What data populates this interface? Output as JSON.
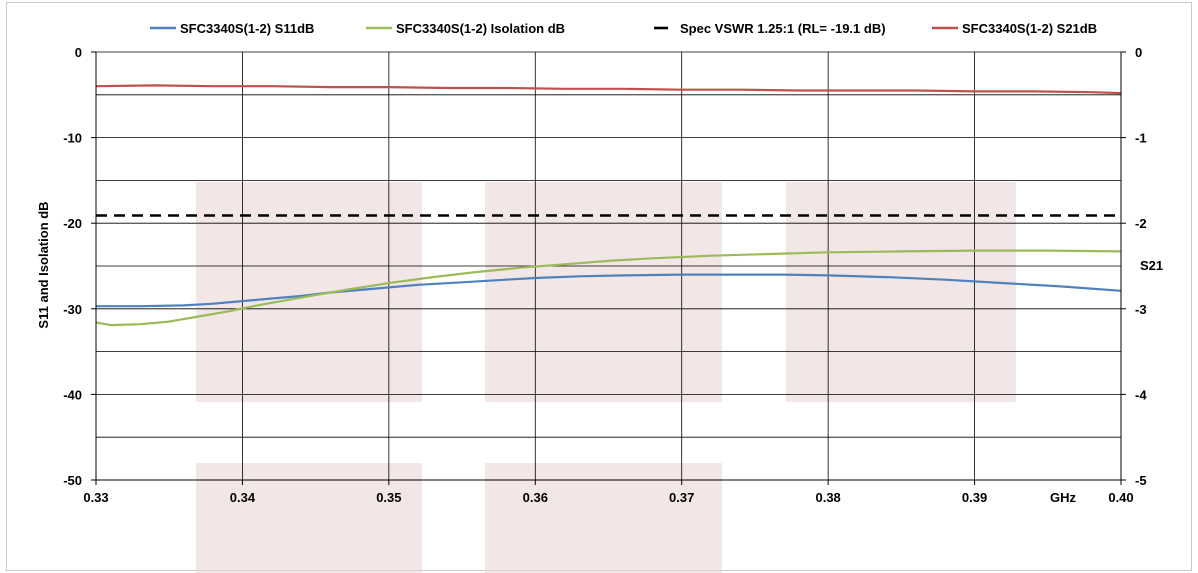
{
  "chart_data": {
    "type": "line",
    "title": "",
    "xlabel": "GHz",
    "ylabel": "S11 and Isolation dB",
    "y2label": "S21",
    "xlim": [
      0.33,
      0.4
    ],
    "ylim": [
      -50,
      0
    ],
    "y2lim": [
      -5,
      0
    ],
    "x_ticks": [
      "0.33",
      "0.34",
      "0.35",
      "0.36",
      "0.37",
      "0.38",
      "0.39",
      "0.40"
    ],
    "y_ticks": [
      "0",
      "-10",
      "-20",
      "-30",
      "-40",
      "-50"
    ],
    "y2_ticks": [
      "0",
      "-1",
      "-2",
      "-3",
      "-4",
      "-5"
    ],
    "grid": true,
    "legend_position": "top",
    "series": [
      {
        "name": "SFC3340S(1-2) S11dB",
        "color": "#4f81bd",
        "axis": "left",
        "x": [
          0.33,
          0.333,
          0.336,
          0.338,
          0.34,
          0.342,
          0.344,
          0.346,
          0.348,
          0.35,
          0.352,
          0.355,
          0.358,
          0.36,
          0.363,
          0.366,
          0.37,
          0.374,
          0.377,
          0.38,
          0.384,
          0.388,
          0.392,
          0.396,
          0.4
        ],
        "y": [
          -29.7,
          -29.7,
          -29.6,
          -29.4,
          -29.1,
          -28.8,
          -28.5,
          -28.1,
          -27.8,
          -27.5,
          -27.2,
          -26.9,
          -26.6,
          -26.4,
          -26.2,
          -26.1,
          -26.0,
          -26.0,
          -26.0,
          -26.1,
          -26.3,
          -26.6,
          -27.0,
          -27.4,
          -27.9
        ]
      },
      {
        "name": "SFC3340S(1-2) Isolation dB",
        "color": "#9bbb59",
        "axis": "left",
        "x": [
          0.33,
          0.331,
          0.333,
          0.335,
          0.337,
          0.339,
          0.341,
          0.343,
          0.345,
          0.347,
          0.35,
          0.353,
          0.356,
          0.359,
          0.362,
          0.365,
          0.368,
          0.372,
          0.376,
          0.38,
          0.385,
          0.39,
          0.395,
          0.4
        ],
        "y": [
          -31.6,
          -31.9,
          -31.8,
          -31.5,
          -30.9,
          -30.3,
          -29.6,
          -29.0,
          -28.4,
          -27.8,
          -27.0,
          -26.3,
          -25.7,
          -25.2,
          -24.8,
          -24.4,
          -24.1,
          -23.8,
          -23.6,
          -23.4,
          -23.3,
          -23.2,
          -23.2,
          -23.3
        ]
      },
      {
        "name": "Spec VSWR 1.25:1 (RL= -19.1 dB)",
        "color": "#000000",
        "axis": "left",
        "dashed": true,
        "x": [
          0.33,
          0.4
        ],
        "y": [
          -19.1,
          -19.1
        ]
      },
      {
        "name": "SFC3340S(1-2) S21dB",
        "color": "#c0504d",
        "axis": "right",
        "x": [
          0.33,
          0.334,
          0.338,
          0.342,
          0.346,
          0.35,
          0.354,
          0.358,
          0.362,
          0.366,
          0.37,
          0.374,
          0.378,
          0.382,
          0.386,
          0.39,
          0.394,
          0.398,
          0.4
        ],
        "y": [
          -0.4,
          -0.39,
          -0.4,
          -0.4,
          -0.41,
          -0.41,
          -0.42,
          -0.42,
          -0.43,
          -0.43,
          -0.44,
          -0.44,
          -0.45,
          -0.45,
          -0.45,
          -0.46,
          -0.46,
          -0.47,
          -0.48
        ]
      }
    ]
  }
}
